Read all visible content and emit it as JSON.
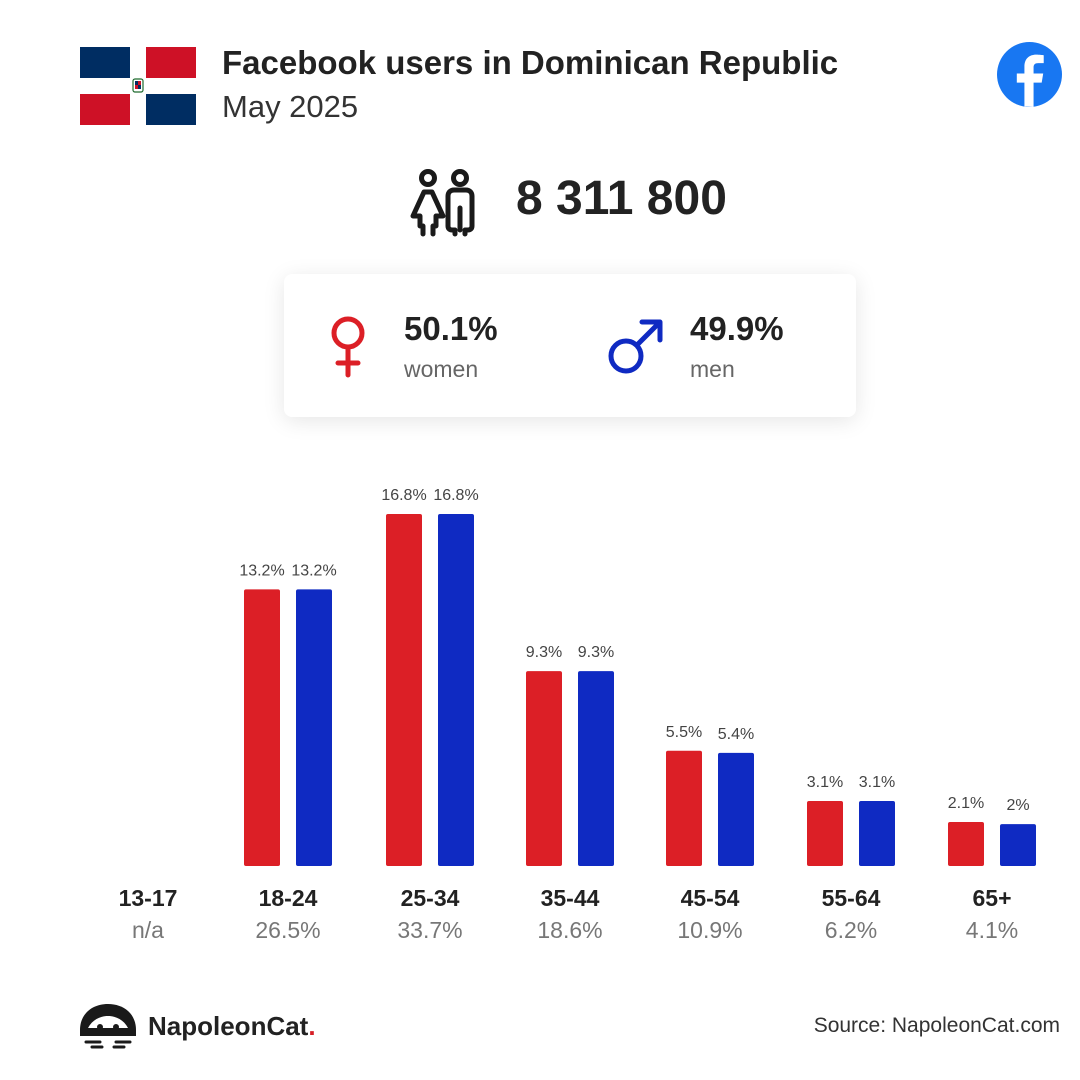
{
  "header": {
    "title": "Facebook users in Dominican Republic",
    "date": "May 2025"
  },
  "total_users": "8 311 800",
  "gender": {
    "women_pct": "50.1%",
    "women_label": "women",
    "men_pct": "49.9%",
    "men_label": "men"
  },
  "colors": {
    "women": "#DC1F26",
    "men": "#0F2AC2",
    "facebook": "#1877F2",
    "flag_blue": "#002D62",
    "flag_red": "#CE1126"
  },
  "chart_data": {
    "type": "bar",
    "categories": [
      "13-17",
      "18-24",
      "25-34",
      "35-44",
      "45-54",
      "55-64",
      "65+"
    ],
    "category_totals": [
      "n/a",
      "26.5%",
      "33.7%",
      "18.6%",
      "10.9%",
      "6.2%",
      "4.1%"
    ],
    "series": [
      {
        "name": "women",
        "values": [
          null,
          13.2,
          16.8,
          9.3,
          5.5,
          3.1,
          2.1
        ],
        "labels": [
          "",
          "13.2%",
          "16.8%",
          "9.3%",
          "5.5%",
          "3.1%",
          "2.1%"
        ]
      },
      {
        "name": "men",
        "values": [
          null,
          13.2,
          16.8,
          9.3,
          5.4,
          3.1,
          2.0
        ],
        "labels": [
          "",
          "13.2%",
          "16.8%",
          "9.3%",
          "5.4%",
          "3.1%",
          "2%"
        ]
      }
    ],
    "ylim": [
      0,
      16.8
    ]
  },
  "footer": {
    "brand": "NapoleonCat",
    "brand_dot": ".",
    "source": "Source: NapoleonCat.com"
  },
  "icons": {
    "flag": "dominican-republic-flag-icon",
    "facebook": "facebook-logo-icon",
    "users": "users-icon",
    "female": "female-symbol-icon",
    "male": "male-symbol-icon",
    "brand": "napoleoncat-logo-icon"
  }
}
